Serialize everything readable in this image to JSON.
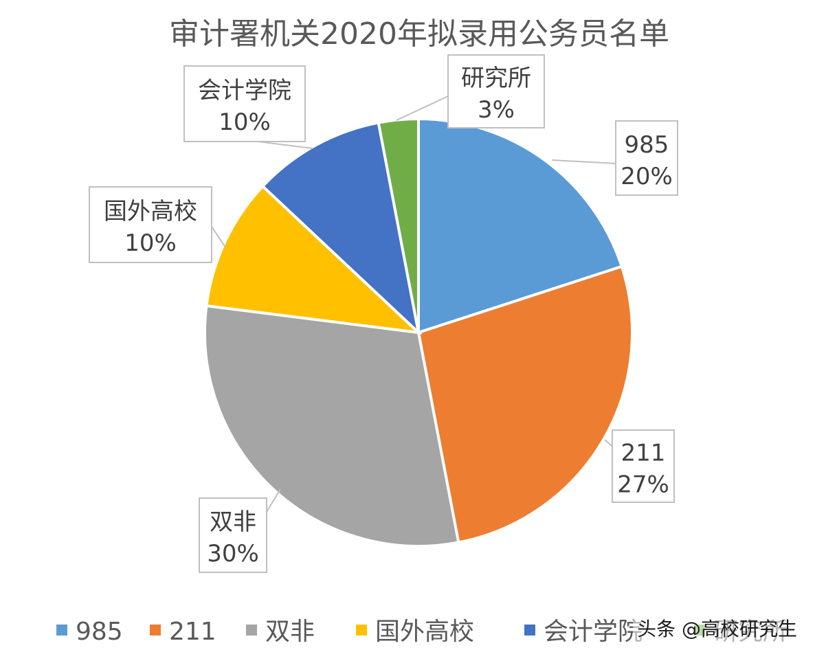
{
  "chart_data": {
    "type": "pie",
    "title": "审计署机关2020年拟录用公务员名单",
    "slices": [
      {
        "name": "985",
        "value": 20,
        "label": "20%",
        "color": "#5B9BD5"
      },
      {
        "name": "211",
        "value": 27,
        "label": "27%",
        "color": "#ED7D31"
      },
      {
        "name": "双非",
        "value": 30,
        "label": "30%",
        "color": "#A5A5A5"
      },
      {
        "name": "国外高校",
        "value": 10,
        "label": "10%",
        "color": "#FFC000"
      },
      {
        "name": "会计学院",
        "value": 10,
        "label": "10%",
        "color": "#4472C4"
      },
      {
        "name": "研究所",
        "value": 3,
        "label": "3%",
        "color": "#70AD47"
      }
    ],
    "legend_position": "bottom"
  },
  "watermark": "头条 @高校研究生"
}
